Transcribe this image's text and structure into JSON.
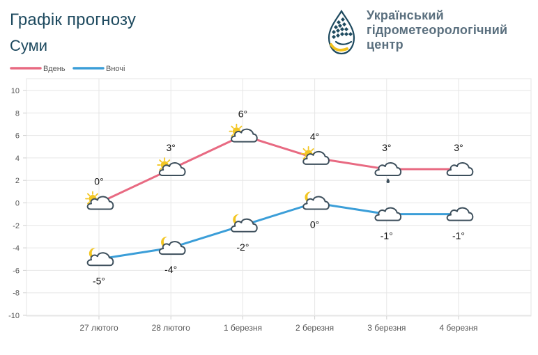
{
  "header": {
    "title": "Графік прогнозу",
    "city": "Суми"
  },
  "brand": {
    "line1": "Український",
    "line2": "гідрометеорологічний",
    "line3": "центр",
    "colors": {
      "primary": "#1e4a5f",
      "accent": "#f2c21d"
    }
  },
  "chart_data": {
    "type": "line",
    "categories": [
      "27 лютого",
      "28 лютого",
      "1 березня",
      "2 березня",
      "3 березня",
      "4 березня"
    ],
    "series": [
      {
        "name": "Вдень",
        "color": "#e86a82",
        "values": [
          0,
          3,
          6,
          4,
          3,
          3
        ],
        "labels": [
          "0°",
          "3°",
          "6°",
          "4°",
          "3°",
          "3°"
        ],
        "icons": [
          "sun-cloud-icon",
          "sun-cloud-icon",
          "sun-cloud-icon",
          "sun-cloud-icon",
          "rain-cloud-icon",
          "cloud-icon"
        ]
      },
      {
        "name": "Вночі",
        "color": "#3b9ed8",
        "values": [
          -5,
          -4,
          -2,
          0,
          -1,
          -1
        ],
        "labels": [
          "-5°",
          "-4°",
          "-2°",
          "0°",
          "-1°",
          "-1°"
        ],
        "icons": [
          "moon-cloud-icon",
          "moon-cloud-icon",
          "moon-cloud-icon",
          "moon-cloud-icon",
          "cloud-icon",
          "cloud-icon"
        ]
      }
    ],
    "yticks": [
      "10",
      "8",
      "6",
      "4",
      "2",
      "0",
      "-2",
      "-4",
      "-6",
      "-8",
      "-10"
    ],
    "ylim": [
      -10,
      10
    ],
    "grid": true,
    "legend": "top-left"
  }
}
